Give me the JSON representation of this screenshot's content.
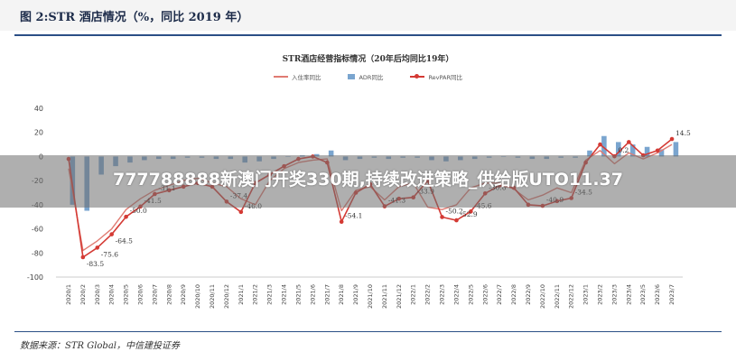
{
  "figure": {
    "title": "图 2:STR 酒店情况（%，同比 2019 年）",
    "source": "数据来源：STR Global，中信建投证券"
  },
  "overlay": {
    "text": "777788888新澳门开奖330期,持续改进策略_供给版UTO11.37"
  },
  "colors": {
    "occupancy": "#e07b72",
    "adr": "#7aa5cf",
    "revpar": "#d43a34",
    "axis_text": "#444444",
    "grid": "#e6e6e6"
  },
  "chart_data": {
    "type": "line",
    "title": "STR酒店经营指标情况（20年后均同比19年）",
    "categories": [
      "2020/1",
      "2020/2",
      "2020/3",
      "2020/4",
      "2020/5",
      "2020/6",
      "2020/7",
      "2020/8",
      "2020/9",
      "2020/10",
      "2020/11",
      "2020/12",
      "2021/1",
      "2021/2",
      "2021/3",
      "2021/4",
      "2021/5",
      "2021/6",
      "2021/7",
      "2021/8",
      "2021/9",
      "2021/10",
      "2021/11",
      "2021/12",
      "2022/1",
      "2022/2",
      "2022/3",
      "2022/4",
      "2022/5",
      "2022/6",
      "2022/7",
      "2022/8",
      "2022/9",
      "2022/10",
      "2022/11",
      "2022/12",
      "2023/1",
      "2023/2",
      "2023/3",
      "2023/4",
      "2023/5",
      "2023/6",
      "2023/7"
    ],
    "ylim": [
      -100,
      40
    ],
    "yticks": [
      40,
      20,
      0,
      -20,
      -40,
      -60,
      -80,
      -100
    ],
    "grid": false,
    "legend_position": "top-center",
    "series": [
      {
        "name": "入住率同比",
        "kind": "line",
        "values": [
          -10,
          -78,
          -70,
          -60,
          -44,
          -35,
          -28,
          -24,
          -20,
          -18,
          -22,
          -25,
          -35,
          -40,
          -20,
          -10,
          -5,
          -3,
          -2,
          -45,
          -28,
          -25,
          -36,
          -25,
          -22,
          -42,
          -44,
          -40,
          -26,
          -22,
          -22,
          -27,
          -36,
          -32,
          -26,
          -30,
          -3,
          5,
          -6,
          3,
          -2,
          3,
          10
        ]
      },
      {
        "name": "ADR同比",
        "kind": "bar",
        "values": [
          -40,
          -45,
          -15,
          -8,
          -5,
          -3,
          -2,
          -2,
          -1,
          -1,
          -2,
          -2,
          -5,
          -4,
          -2,
          0,
          1,
          2,
          5,
          -3,
          -2,
          -1,
          -2,
          -1,
          -1,
          -3,
          -4,
          -3,
          -2,
          -1,
          0,
          -1,
          -2,
          -2,
          -1,
          -1,
          5,
          17,
          12,
          10,
          8,
          6,
          12
        ]
      },
      {
        "name": "RevPAR同比",
        "kind": "line",
        "values": [
          -2,
          -83.5,
          -75.6,
          -64.5,
          -50.0,
          -41.5,
          -31.1,
          -28,
          -25,
          -22,
          -25,
          -37.4,
          -46.0,
          -22,
          -15,
          -8,
          -2,
          0,
          -5,
          -54.1,
          -30,
          -23,
          -41.3,
          -35,
          -33.9,
          -20,
          -50.2,
          -52.9,
          -45.6,
          -30.6,
          -24,
          -26,
          -40,
          -40.9,
          -37,
          -34.5,
          -5,
          10,
          0.2,
          12,
          1,
          5,
          14.5
        ]
      }
    ],
    "data_labels": [
      {
        "series": "RevPAR同比",
        "index": 1,
        "text": "-83.5"
      },
      {
        "series": "RevPAR同比",
        "index": 2,
        "text": "-75.6"
      },
      {
        "series": "RevPAR同比",
        "index": 3,
        "text": "-64.5"
      },
      {
        "series": "RevPAR同比",
        "index": 4,
        "text": "-50.0"
      },
      {
        "series": "RevPAR同比",
        "index": 5,
        "text": "-41.5"
      },
      {
        "series": "RevPAR同比",
        "index": 6,
        "text": "-31.1"
      },
      {
        "series": "RevPAR同比",
        "index": 11,
        "text": "-37.4"
      },
      {
        "series": "RevPAR同比",
        "index": 12,
        "text": "-46.0"
      },
      {
        "series": "RevPAR同比",
        "index": 19,
        "text": "-54.1"
      },
      {
        "series": "RevPAR同比",
        "index": 22,
        "text": "-41.3"
      },
      {
        "series": "RevPAR同比",
        "index": 24,
        "text": "-33.9"
      },
      {
        "series": "RevPAR同比",
        "index": 26,
        "text": "-50.2"
      },
      {
        "series": "RevPAR同比",
        "index": 27,
        "text": "-52.9"
      },
      {
        "series": "RevPAR同比",
        "index": 28,
        "text": "-45.6"
      },
      {
        "series": "RevPAR同比",
        "index": 29,
        "text": "-30.6"
      },
      {
        "series": "RevPAR同比",
        "index": 33,
        "text": "-40.9"
      },
      {
        "series": "RevPAR同比",
        "index": 35,
        "text": "-34.5"
      },
      {
        "series": "RevPAR同比",
        "index": 38,
        "text": "0.2"
      },
      {
        "series": "RevPAR同比",
        "index": 42,
        "text": "14.5"
      }
    ]
  }
}
